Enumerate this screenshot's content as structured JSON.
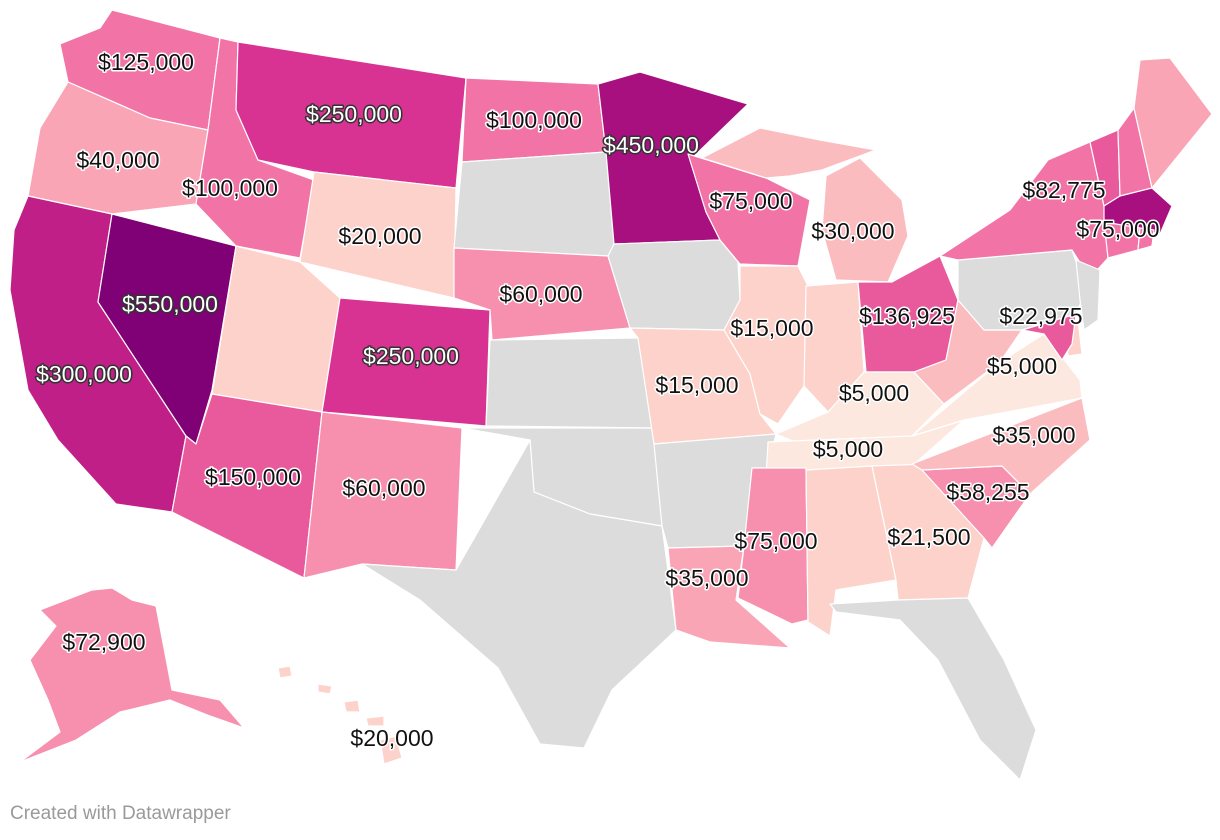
{
  "footer": {
    "credit": "Created with Datawrapper"
  },
  "colors": {
    "no_data": "#dcdcdc",
    "scale": [
      "#fde8df",
      "#fcd2cb",
      "#fbbcc0",
      "#f9a5b6",
      "#f78fae",
      "#f273a6",
      "#e95a9d",
      "#d83393",
      "#c01f88",
      "#a80f7f",
      "#800075"
    ]
  },
  "states": {
    "WA": {
      "value": "$125,000",
      "fill": "#f273a6"
    },
    "OR": {
      "value": "$40,000",
      "fill": "#f9a5b6"
    },
    "CA": {
      "value": "$300,000",
      "fill": "#c01f88"
    },
    "NV": {
      "value": "$550,000",
      "fill": "#800075"
    },
    "ID": {
      "value": "$100,000",
      "fill": "#f273a6"
    },
    "MT": {
      "value": "$250,000",
      "fill": "#d83393"
    },
    "WY": {
      "value": "$20,000",
      "fill": "#fcd2cb"
    },
    "UT": {
      "value": "",
      "fill": "#fcd2cb"
    },
    "AZ": {
      "value": "$150,000",
      "fill": "#e95a9d"
    },
    "CO": {
      "value": "$250,000",
      "fill": "#d83393"
    },
    "NM": {
      "value": "$60,000",
      "fill": "#f78fae"
    },
    "ND": {
      "value": "$100,000",
      "fill": "#f273a6"
    },
    "SD": {
      "value": "",
      "fill": "#dcdcdc"
    },
    "NE": {
      "value": "$60,000",
      "fill": "#f78fae"
    },
    "KS": {
      "value": "",
      "fill": "#dcdcdc"
    },
    "OK": {
      "value": "",
      "fill": "#dcdcdc"
    },
    "TX": {
      "value": "",
      "fill": "#dcdcdc"
    },
    "MN": {
      "value": "$450,000",
      "fill": "#a80f7f"
    },
    "IA": {
      "value": "",
      "fill": "#dcdcdc"
    },
    "MO": {
      "value": "$15,000",
      "fill": "#fcd2cb"
    },
    "AR": {
      "value": "",
      "fill": "#dcdcdc"
    },
    "LA": {
      "value": "$35,000",
      "fill": "#f9a5b6"
    },
    "WI": {
      "value": "$75,000",
      "fill": "#f273a6"
    },
    "IL": {
      "value": "$15,000",
      "fill": "#fcd2cb"
    },
    "MI": {
      "value": "$30,000",
      "fill": "#fbbcc0"
    },
    "IN": {
      "value": "",
      "fill": "#fcd2cb"
    },
    "OH": {
      "value": "$136,925",
      "fill": "#e95a9d"
    },
    "KY": {
      "value": "$5,000",
      "fill": "#fde8df"
    },
    "TN": {
      "value": "$5,000",
      "fill": "#fde8df"
    },
    "MS": {
      "value": "$75,000",
      "fill": "#f78fae"
    },
    "AL": {
      "value": "",
      "fill": "#fcd2cb"
    },
    "GA": {
      "value": "$21,500",
      "fill": "#fcd2cb"
    },
    "FL": {
      "value": "",
      "fill": "#dcdcdc"
    },
    "SC": {
      "value": "$58,255",
      "fill": "#f78fae"
    },
    "NC": {
      "value": "$35,000",
      "fill": "#fbbcc0"
    },
    "VA": {
      "value": "$5,000",
      "fill": "#fde8df"
    },
    "WV": {
      "value": "",
      "fill": "#fbbcc0"
    },
    "PA": {
      "value": "",
      "fill": "#dcdcdc"
    },
    "NY": {
      "value": "$82,775",
      "fill": "#f273a6"
    },
    "VT": {
      "value": "",
      "fill": "#e95a9d"
    },
    "NH": {
      "value": "",
      "fill": "#f273a6"
    },
    "ME": {
      "value": "",
      "fill": "#f9a5b6"
    },
    "MA": {
      "value": "$75,000",
      "fill": "#a80f7f"
    },
    "CT": {
      "value": "",
      "fill": "#f273a6"
    },
    "RI": {
      "value": "",
      "fill": "#f273a6"
    },
    "NJ": {
      "value": "",
      "fill": "#dcdcdc"
    },
    "DE": {
      "value": "",
      "fill": "#fcd2cb"
    },
    "MD": {
      "value": "$22,975",
      "fill": "#e95a9d"
    },
    "AK": {
      "value": "$72,900",
      "fill": "#f78fae"
    },
    "HI": {
      "value": "$20,000",
      "fill": "#fcd2cb"
    }
  }
}
